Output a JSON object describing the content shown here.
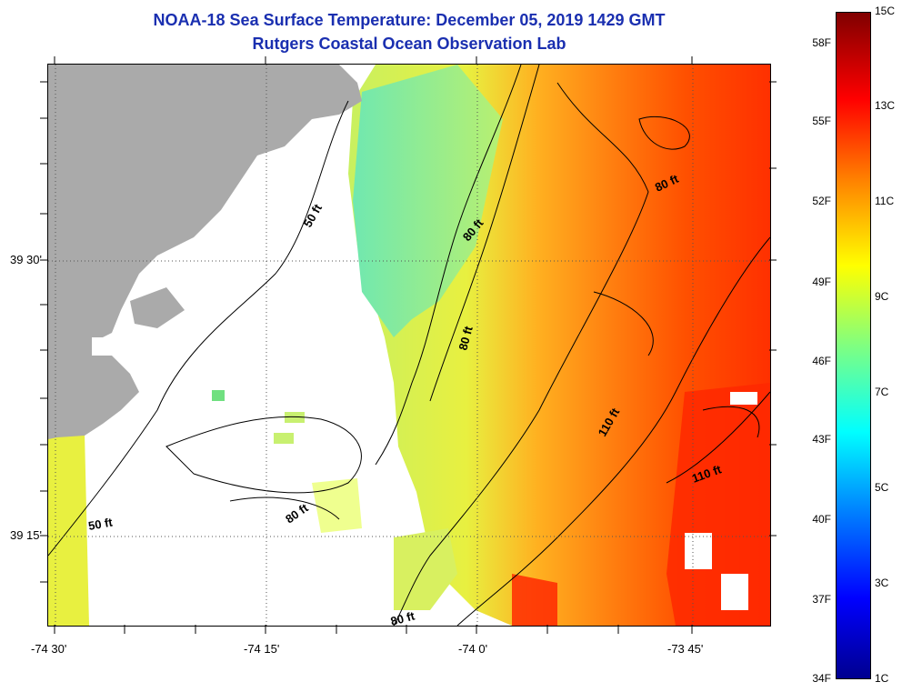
{
  "header": {
    "title_line1": "NOAA-18 Sea Surface Temperature:  December 05, 2019 1429 GMT",
    "title_line2": "Rutgers Coastal Ocean Observation Lab"
  },
  "map": {
    "x_axis_labels": [
      "-74 30'",
      "-74 15'",
      "-74 0'",
      "-73 45'"
    ],
    "y_axis_labels": [
      "39 30'",
      "39 15'"
    ],
    "depth_labels": [
      "50 ft",
      "80 ft",
      "80 ft",
      "80 ft",
      "110 ft",
      "110 ft",
      "50 ft",
      "80 ft",
      "80 ft"
    ]
  },
  "colorbar": {
    "fahrenheit_labels": [
      "58F",
      "55F",
      "52F",
      "49F",
      "46F",
      "43F",
      "40F",
      "37F",
      "34F"
    ],
    "celsius_labels": [
      "15C",
      "13C",
      "11C",
      "9C",
      "7C",
      "5C",
      "3C",
      "1C"
    ]
  },
  "colors": {
    "title": "#1a2fb0",
    "land": "#aaaaaa"
  }
}
